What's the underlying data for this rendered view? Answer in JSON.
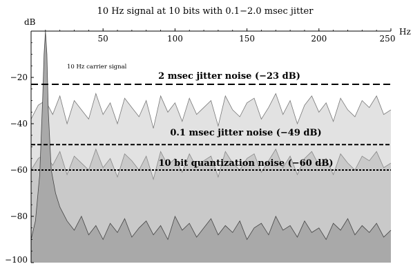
{
  "chart_data": {
    "type": "area",
    "title": "10 Hz signal at 10 bits with 0.1−2.0 msec jitter",
    "xlabel": "Hz",
    "ylabel": "dB",
    "xlim": [
      0,
      250
    ],
    "ylim": [
      -100,
      0
    ],
    "x_ticks": [
      50,
      100,
      150,
      200,
      250
    ],
    "y_ticks": [
      -20,
      -40,
      -60,
      -80,
      -100
    ],
    "x_tick_labels": [
      "50",
      "100",
      "150",
      "200",
      "250"
    ],
    "y_tick_labels": [
      "−20",
      "−40",
      "−60",
      "−80",
      "−100"
    ],
    "grid": false,
    "carrier": {
      "frequency_hz": 10,
      "label": "10 Hz carrier signal"
    },
    "reference_lines": [
      {
        "label": "2 msec jitter noise (−23 dB)",
        "value": -23
      },
      {
        "label": "0.1 msec jitter noise (−49 dB)",
        "value": -49
      },
      {
        "label": "10 bit quantization noise (−60 dB)",
        "value": -60
      }
    ],
    "series": [
      {
        "x": [
          0,
          5,
          10,
          15,
          20,
          25,
          30,
          35,
          40,
          45,
          50,
          55,
          60,
          65,
          70,
          75,
          80,
          85,
          90,
          95,
          100,
          105,
          110,
          115,
          120,
          125,
          130,
          135,
          140,
          145,
          150,
          155,
          160,
          165,
          170,
          175,
          180,
          185,
          190,
          195,
          200,
          205,
          210,
          215,
          220,
          225,
          230,
          235,
          240,
          245,
          250
        ],
        "values": [
          -38,
          -32,
          -30,
          -36,
          -28,
          -40,
          -30,
          -34,
          -38,
          -27,
          -36,
          -31,
          -40,
          -29,
          -33,
          -37,
          -30,
          -42,
          -28,
          -35,
          -31,
          -39,
          -29,
          -36,
          -33,
          -30,
          -41,
          -28,
          -34,
          -37,
          -31,
          -29,
          -38,
          -33,
          -27,
          -36,
          -30,
          -40,
          -32,
          -28,
          -35,
          -31,
          -39,
          -29,
          -34,
          -37,
          -30,
          -33,
          -28,
          -36,
          -34
        ]
      },
      {
        "x": [
          0,
          5,
          10,
          15,
          20,
          25,
          30,
          35,
          40,
          45,
          50,
          55,
          60,
          65,
          70,
          75,
          80,
          85,
          90,
          95,
          100,
          105,
          110,
          115,
          120,
          125,
          130,
          135,
          140,
          145,
          150,
          155,
          160,
          165,
          170,
          175,
          180,
          185,
          190,
          195,
          200,
          205,
          210,
          215,
          220,
          225,
          230,
          235,
          240,
          245,
          250
        ],
        "values": [
          -60,
          -55,
          -53,
          -58,
          -52,
          -62,
          -54,
          -57,
          -60,
          -51,
          -59,
          -55,
          -63,
          -53,
          -56,
          -60,
          -54,
          -64,
          -52,
          -58,
          -55,
          -61,
          -53,
          -59,
          -56,
          -54,
          -63,
          -52,
          -57,
          -60,
          -55,
          -53,
          -61,
          -56,
          -51,
          -59,
          -54,
          -62,
          -55,
          -52,
          -58,
          -55,
          -62,
          -53,
          -57,
          -60,
          -54,
          -56,
          -52,
          -59,
          -57
        ]
      },
      {
        "x": [
          0,
          3,
          6,
          8,
          9,
          10,
          11,
          12,
          14,
          17,
          20,
          25,
          30,
          35,
          40,
          45,
          50,
          55,
          60,
          65,
          70,
          75,
          80,
          85,
          90,
          95,
          100,
          105,
          110,
          115,
          120,
          125,
          130,
          135,
          140,
          145,
          150,
          155,
          160,
          165,
          170,
          175,
          180,
          185,
          190,
          195,
          200,
          205,
          210,
          215,
          220,
          225,
          230,
          235,
          240,
          245,
          250
        ],
        "values": [
          -90,
          -82,
          -62,
          -30,
          -10,
          0,
          -10,
          -35,
          -60,
          -70,
          -76,
          -82,
          -86,
          -80,
          -88,
          -84,
          -90,
          -83,
          -87,
          -81,
          -89,
          -85,
          -82,
          -88,
          -84,
          -90,
          -80,
          -86,
          -83,
          -89,
          -85,
          -81,
          -88,
          -84,
          -87,
          -82,
          -90,
          -85,
          -83,
          -88,
          -80,
          -86,
          -84,
          -89,
          -82,
          -87,
          -85,
          -90,
          -83,
          -86,
          -81,
          -88,
          -84,
          -87,
          -83,
          -89,
          -86
        ]
      }
    ]
  }
}
